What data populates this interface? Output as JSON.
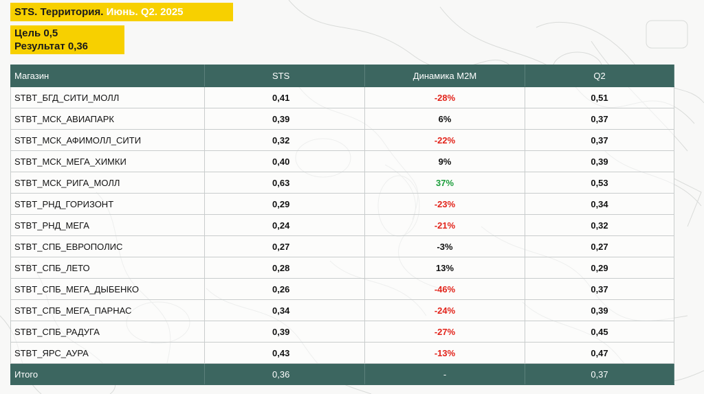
{
  "header": {
    "title_dark": "STS. Территория.",
    "title_light": " Июнь. Q2. 2025",
    "target_line": "Цель 0,5",
    "result_line": "Результат 0,36"
  },
  "colors": {
    "accent_yellow": "#f7d000",
    "table_header_bg": "#3c6660",
    "negative": "#e2231a",
    "positive": "#1d9e3c"
  },
  "table": {
    "columns": [
      "Магазин",
      "STS",
      "Динамика М2М",
      "Q2"
    ],
    "rows": [
      {
        "store": "STBT_БГД_СИТИ_МОЛЛ",
        "sts": "0,41",
        "dyn": "-28%",
        "dyn_sign": "neg",
        "q2": "0,51"
      },
      {
        "store": "STBT_МСК_АВИАПАРК",
        "sts": "0,39",
        "dyn": "6%",
        "dyn_sign": "neutral",
        "q2": "0,37"
      },
      {
        "store": "STBT_МСК_АФИМОЛЛ_СИТИ",
        "sts": "0,32",
        "dyn": "-22%",
        "dyn_sign": "neg",
        "q2": "0,37"
      },
      {
        "store": "STBT_МСК_МЕГА_ХИМКИ",
        "sts": "0,40",
        "dyn": "9%",
        "dyn_sign": "neutral",
        "q2": "0,39"
      },
      {
        "store": "STBT_МСК_РИГА_МОЛЛ",
        "sts": "0,63",
        "dyn": "37%",
        "dyn_sign": "pos",
        "q2": "0,53"
      },
      {
        "store": "STBT_РНД_ГОРИЗОНТ",
        "sts": "0,29",
        "dyn": "-23%",
        "dyn_sign": "neg",
        "q2": "0,34"
      },
      {
        "store": "STBT_РНД_МЕГА",
        "sts": "0,24",
        "dyn": "-21%",
        "dyn_sign": "neg",
        "q2": "0,32"
      },
      {
        "store": "STBT_СПБ_ЕВРОПОЛИС",
        "sts": "0,27",
        "dyn": "-3%",
        "dyn_sign": "neutral",
        "q2": "0,27"
      },
      {
        "store": "STBT_СПБ_ЛЕТО",
        "sts": "0,28",
        "dyn": "13%",
        "dyn_sign": "neutral",
        "q2": "0,29"
      },
      {
        "store": "STBT_СПБ_МЕГА_ДЫБЕНКО",
        "sts": "0,26",
        "dyn": "-46%",
        "dyn_sign": "neg",
        "q2": "0,37"
      },
      {
        "store": "STBT_СПБ_МЕГА_ПАРНАС",
        "sts": "0,34",
        "dyn": "-24%",
        "dyn_sign": "neg",
        "q2": "0,39"
      },
      {
        "store": "STBT_СПБ_РАДУГА",
        "sts": "0,39",
        "dyn": "-27%",
        "dyn_sign": "neg",
        "q2": "0,45"
      },
      {
        "store": "STBT_ЯРС_АУРА",
        "sts": "0,43",
        "dyn": "-13%",
        "dyn_sign": "neg",
        "q2": "0,47"
      }
    ],
    "total": {
      "store": "Итого",
      "sts": "0,36",
      "dyn": "-",
      "q2": "0,37"
    }
  }
}
